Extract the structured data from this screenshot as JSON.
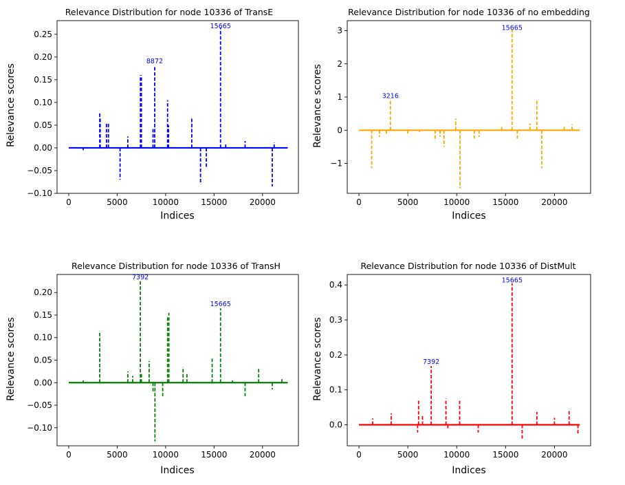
{
  "chart_data": [
    {
      "type": "line",
      "title": "Relevance Distribution for node  10336 of TransE",
      "xlabel": "Indices",
      "ylabel": "Relevance scores",
      "xlim": [
        -1200,
        23700
      ],
      "ylim": [
        -0.1,
        0.28
      ],
      "xticks": [
        0,
        5000,
        10000,
        15000,
        20000
      ],
      "yticks": [
        -0.1,
        -0.05,
        0.0,
        0.05,
        0.1,
        0.15,
        0.2,
        0.25
      ],
      "ytick_labels": [
        "−0.10",
        "−0.05",
        "0.00",
        "0.05",
        "0.10",
        "0.15",
        "0.20",
        "0.25"
      ],
      "series": [
        {
          "color": "#0000ff",
          "style": "dashed",
          "x": [
            1500,
            3200,
            3250,
            3900,
            4100,
            5300,
            6100,
            7400,
            7500,
            8700,
            8872,
            10200,
            10300,
            12700,
            13600,
            14200,
            15665,
            16200,
            18200,
            21000,
            21200
          ],
          "y": [
            -0.005,
            0.078,
            0.065,
            0.055,
            0.055,
            -0.07,
            0.025,
            0.16,
            0.16,
            0.045,
            0.18,
            0.105,
            0.05,
            0.065,
            -0.08,
            -0.045,
            0.265,
            0.01,
            0.015,
            -0.085,
            0.012
          ]
        }
      ],
      "annotations": [
        {
          "text": "8872",
          "x": 8872,
          "y": 0.185
        },
        {
          "text": "15665",
          "x": 15665,
          "y": 0.262
        }
      ]
    },
    {
      "type": "line",
      "title": "Relevance Distribution for node  10336 of no embedding",
      "xlabel": "Indices",
      "ylabel": "Relevance scores",
      "xlim": [
        -1200,
        23700
      ],
      "ylim": [
        -1.9,
        3.3
      ],
      "xticks": [
        0,
        5000,
        10000,
        15000,
        20000
      ],
      "yticks": [
        -1,
        0,
        1,
        2,
        3
      ],
      "ytick_labels": [
        "−1",
        "0",
        "1",
        "2",
        "3"
      ],
      "series": [
        {
          "color": "#ffa500",
          "style": "dashed",
          "x": [
            1300,
            2100,
            2800,
            3216,
            5000,
            6200,
            7800,
            8300,
            8700,
            9900,
            10336,
            11800,
            12300,
            14600,
            15665,
            16200,
            17500,
            18200,
            18700,
            21000,
            21800
          ],
          "y": [
            -1.15,
            -0.2,
            -0.15,
            0.95,
            -0.1,
            -0.05,
            -0.3,
            -0.2,
            -0.5,
            0.35,
            -1.75,
            -0.25,
            -0.2,
            0.1,
            3.02,
            -0.25,
            0.2,
            0.9,
            -1.15,
            0.15,
            0.18
          ]
        }
      ],
      "annotations": [
        {
          "text": "3216",
          "x": 3216,
          "y": 0.95
        },
        {
          "text": "15665",
          "x": 15665,
          "y": 3.0
        }
      ]
    },
    {
      "type": "line",
      "title": "Relevance Distribution for node  10336 of TransH",
      "xlabel": "Indices",
      "ylabel": "Relevance scores",
      "xlim": [
        -1200,
        23700
      ],
      "ylim": [
        -0.14,
        0.24
      ],
      "xticks": [
        0,
        5000,
        10000,
        15000,
        20000
      ],
      "yticks": [
        -0.1,
        -0.05,
        0.0,
        0.05,
        0.1,
        0.15,
        0.2
      ],
      "ytick_labels": [
        "−0.10",
        "−0.05",
        "0.00",
        "0.05",
        "0.10",
        "0.15",
        "0.20"
      ],
      "series": [
        {
          "color": "#008000",
          "style": "dashed",
          "x": [
            1500,
            3200,
            6100,
            6600,
            7392,
            7500,
            8300,
            8700,
            8900,
            9700,
            10200,
            10336,
            11800,
            12200,
            14800,
            15665,
            16900,
            18200,
            19600,
            21000,
            22000
          ],
          "y": [
            0.005,
            0.115,
            0.025,
            0.015,
            0.225,
            0.02,
            0.048,
            -0.02,
            -0.13,
            -0.03,
            0.145,
            0.155,
            0.035,
            0.02,
            0.055,
            0.165,
            0.005,
            -0.03,
            0.032,
            -0.015,
            0.01
          ]
        }
      ],
      "annotations": [
        {
          "text": "7392",
          "x": 7392,
          "y": 0.228
        },
        {
          "text": "15665",
          "x": 15665,
          "y": 0.168
        }
      ]
    },
    {
      "type": "line",
      "title": "Relevance Distribution for node  10336 of DistMult",
      "xlabel": "Indices",
      "ylabel": "Relevance scores",
      "xlim": [
        -1200,
        23700
      ],
      "ylim": [
        -0.06,
        0.43
      ],
      "xticks": [
        0,
        5000,
        10000,
        15000,
        20000
      ],
      "yticks": [
        0.0,
        0.1,
        0.2,
        0.3,
        0.4
      ],
      "ytick_labels": [
        "0.0",
        "0.1",
        "0.2",
        "0.3",
        "0.4"
      ],
      "series": [
        {
          "color": "#ff0000",
          "style": "dashed",
          "x": [
            1400,
            3300,
            6000,
            6100,
            6500,
            7392,
            8900,
            9100,
            10300,
            12200,
            15665,
            16700,
            18200,
            20000,
            21500,
            22400
          ],
          "y": [
            0.018,
            0.033,
            -0.022,
            0.07,
            0.025,
            0.168,
            0.075,
            -0.01,
            0.07,
            -0.022,
            0.405,
            -0.04,
            0.037,
            0.02,
            0.045,
            -0.025
          ]
        }
      ],
      "annotations": [
        {
          "text": "7392",
          "x": 7392,
          "y": 0.172
        },
        {
          "text": "15665",
          "x": 15665,
          "y": 0.405
        }
      ]
    }
  ]
}
